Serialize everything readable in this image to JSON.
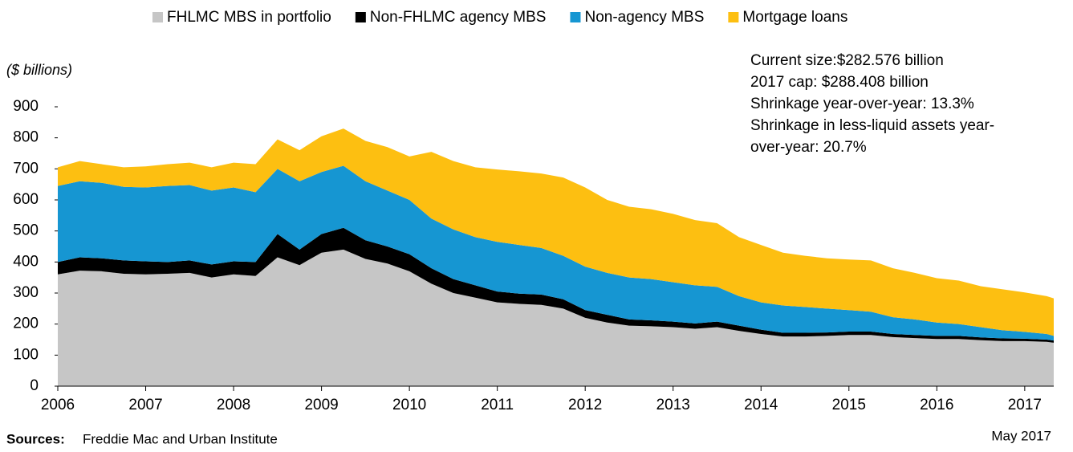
{
  "chart_data": {
    "type": "stacked_area",
    "y_axis_label": "($ billions)",
    "annotation": [
      "Current size:$282.576 billion",
      "2017 cap: $288.408 billion",
      "Shrinkage year-over-year: 13.3%",
      "Shrinkage in less-liquid assets year-",
      "over-year: 20.7%"
    ],
    "source_label": "Sources:",
    "source_text": "Freddie Mac and Urban Institute",
    "date_note": "May 2017",
    "legend_position": "top",
    "x": [
      2006,
      2006.25,
      2006.5,
      2006.75,
      2007,
      2007.25,
      2007.5,
      2007.75,
      2008,
      2008.25,
      2008.5,
      2008.75,
      2009,
      2009.25,
      2009.5,
      2009.75,
      2010,
      2010.25,
      2010.5,
      2010.75,
      2011,
      2011.25,
      2011.5,
      2011.75,
      2012,
      2012.25,
      2012.5,
      2012.75,
      2013,
      2013.25,
      2013.5,
      2013.75,
      2014,
      2014.25,
      2014.5,
      2014.75,
      2015,
      2015.25,
      2015.5,
      2015.75,
      2016,
      2016.25,
      2016.5,
      2016.75,
      2017,
      2017.25,
      2017.33
    ],
    "series": [
      {
        "name": "FHLMC MBS in portfolio",
        "color": "#c6c6c6",
        "values": [
          360,
          372,
          370,
          362,
          360,
          362,
          365,
          350,
          360,
          355,
          415,
          390,
          430,
          440,
          410,
          395,
          370,
          330,
          300,
          285,
          270,
          265,
          262,
          250,
          220,
          205,
          195,
          193,
          190,
          185,
          190,
          178,
          168,
          160,
          160,
          162,
          165,
          165,
          158,
          155,
          152,
          152,
          148,
          145,
          145,
          143,
          140
        ]
      },
      {
        "name": "Non-FHLMC agency MBS",
        "color": "#000000",
        "values": [
          40,
          43,
          42,
          43,
          42,
          38,
          40,
          42,
          42,
          45,
          75,
          50,
          60,
          70,
          60,
          55,
          55,
          50,
          45,
          40,
          35,
          33,
          33,
          30,
          25,
          25,
          20,
          19,
          18,
          17,
          18,
          17,
          14,
          12,
          12,
          11,
          11,
          11,
          10,
          10,
          10,
          10,
          9,
          9,
          8,
          7,
          7
        ]
      },
      {
        "name": "Non-agency MBS",
        "color": "#1696d2",
        "values": [
          245,
          245,
          243,
          237,
          238,
          245,
          243,
          238,
          238,
          225,
          210,
          220,
          200,
          200,
          190,
          180,
          175,
          160,
          160,
          155,
          160,
          157,
          150,
          140,
          140,
          135,
          135,
          133,
          127,
          123,
          112,
          95,
          88,
          88,
          83,
          77,
          69,
          64,
          54,
          50,
          43,
          38,
          33,
          26,
          22,
          18,
          15
        ]
      },
      {
        "name": "Mortgage loans",
        "color": "#fdbf11",
        "values": [
          60,
          65,
          60,
          63,
          68,
          70,
          72,
          75,
          80,
          90,
          95,
          100,
          115,
          120,
          130,
          140,
          140,
          215,
          220,
          225,
          233,
          237,
          240,
          252,
          255,
          235,
          228,
          225,
          220,
          210,
          205,
          190,
          185,
          170,
          165,
          162,
          163,
          165,
          158,
          150,
          143,
          140,
          132,
          132,
          127,
          122,
          121
        ]
      }
    ],
    "xlim": [
      2006,
      2017.33
    ],
    "xticks": [
      2006,
      2007,
      2008,
      2009,
      2010,
      2011,
      2012,
      2013,
      2014,
      2015,
      2016,
      2017
    ],
    "ylim": [
      0,
      900
    ],
    "yticks": [
      0,
      100,
      200,
      300,
      400,
      500,
      600,
      700,
      800,
      900
    ]
  }
}
